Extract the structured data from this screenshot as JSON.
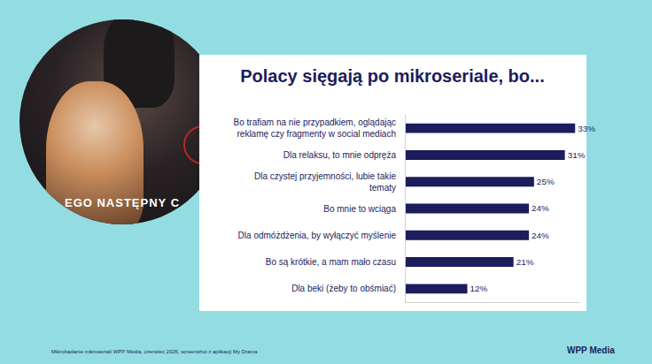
{
  "chart_data": {
    "type": "bar",
    "orientation": "horizontal",
    "title": "Polacy sięgają po mikroseriale, bo...",
    "categories": [
      "Bo trafiam na nie przypadkiem, oglądając reklamę czy fragmenty w social mediach",
      "Dla relaksu, to mnie odpręża",
      "Dla czystej przyjemności, lubie takie tematy",
      "Bo mnie to wciąga",
      "Dla odmóżdżenia, by wyłączyć myślenie",
      "Bo są krótkie, a mam mało czasu",
      "Dla beki (żeby to obśmiać)"
    ],
    "values": [
      33,
      31,
      25,
      24,
      24,
      21,
      12
    ],
    "value_labels": [
      "33%",
      "31%",
      "25%",
      "24%",
      "24%",
      "21%",
      "12%"
    ],
    "color": "#1b1d5c",
    "data_labels": true,
    "xlim": [
      0,
      34
    ],
    "tick_labels": "y",
    "grid": false
  },
  "image": {
    "text": "EGO NASTĘPNY C"
  },
  "footer": {
    "source": "Mikrobadanie mikroseriali WPP Media, czerwiec 2026, screenshot z aplikacji My Drama",
    "logo": "WPP Media"
  }
}
